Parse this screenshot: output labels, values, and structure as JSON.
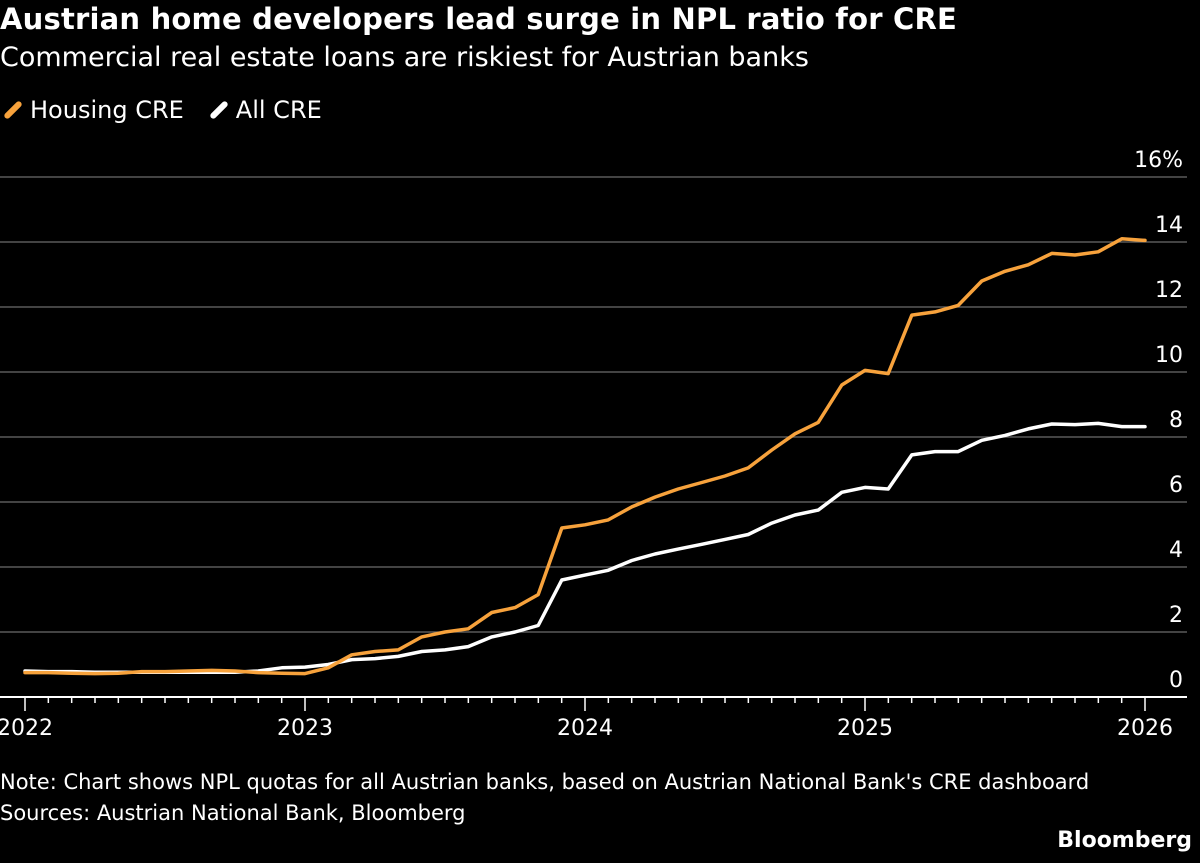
{
  "header": {
    "title": "Austrian home developers lead surge in NPL ratio for CRE",
    "subtitle": "Commercial real estate loans are riskiest for Austrian banks"
  },
  "footer": {
    "note": "Note: Chart shows NPL quotas for all Austrian banks, based on Austrian National Bank's CRE dashboard",
    "sources": "Sources: Austrian National Bank, Bloomberg",
    "brand": "Bloomberg"
  },
  "colors": {
    "background": "#000000",
    "housing": "#f7a23c",
    "all": "#ffffff",
    "grid": "#6b6b6b",
    "axis": "#ffffff"
  },
  "chart_data": {
    "type": "line",
    "title": "Austrian home developers lead surge in NPL ratio for CRE",
    "subtitle": "Commercial real estate loans are riskiest for Austrian banks",
    "xlabel": "",
    "ylabel": "",
    "xlim": [
      2022.0,
      2026.0
    ],
    "ylim": [
      0,
      16
    ],
    "y_ticks": [
      {
        "value": 0,
        "label": "0"
      },
      {
        "value": 2,
        "label": "2"
      },
      {
        "value": 4,
        "label": "4"
      },
      {
        "value": 6,
        "label": "6"
      },
      {
        "value": 8,
        "label": "8"
      },
      {
        "value": 10,
        "label": "10"
      },
      {
        "value": 12,
        "label": "12"
      },
      {
        "value": 14,
        "label": "14"
      },
      {
        "value": 16,
        "label": "16%"
      }
    ],
    "x_ticks": [
      {
        "value": 2022,
        "label": "2022"
      },
      {
        "value": 2023,
        "label": "2023"
      },
      {
        "value": 2024,
        "label": "2024"
      },
      {
        "value": 2025,
        "label": "2025"
      },
      {
        "value": 2026,
        "label": "2026"
      }
    ],
    "grid": true,
    "y_axis_position": "right",
    "legend_position": "top-left",
    "series": [
      {
        "name": "Housing CRE",
        "color": "#f7a23c",
        "points": [
          [
            2022.0,
            0.75
          ],
          [
            2022.083,
            0.75
          ],
          [
            2022.167,
            0.73
          ],
          [
            2022.25,
            0.72
          ],
          [
            2022.333,
            0.73
          ],
          [
            2022.417,
            0.78
          ],
          [
            2022.5,
            0.78
          ],
          [
            2022.583,
            0.8
          ],
          [
            2022.667,
            0.82
          ],
          [
            2022.75,
            0.8
          ],
          [
            2022.833,
            0.75
          ],
          [
            2022.917,
            0.73
          ],
          [
            2023.0,
            0.72
          ],
          [
            2023.083,
            0.9
          ],
          [
            2023.167,
            1.3
          ],
          [
            2023.25,
            1.4
          ],
          [
            2023.333,
            1.45
          ],
          [
            2023.417,
            1.85
          ],
          [
            2023.5,
            2.0
          ],
          [
            2023.583,
            2.1
          ],
          [
            2023.667,
            2.6
          ],
          [
            2023.75,
            2.75
          ],
          [
            2023.833,
            3.15
          ],
          [
            2023.917,
            5.2
          ],
          [
            2024.0,
            5.3
          ],
          [
            2024.083,
            5.45
          ],
          [
            2024.167,
            5.85
          ],
          [
            2024.25,
            6.15
          ],
          [
            2024.333,
            6.4
          ],
          [
            2024.417,
            6.6
          ],
          [
            2024.5,
            6.8
          ],
          [
            2024.583,
            7.05
          ],
          [
            2024.667,
            7.6
          ],
          [
            2024.75,
            8.1
          ],
          [
            2024.833,
            8.45
          ],
          [
            2024.917,
            9.6
          ],
          [
            2025.0,
            10.05
          ],
          [
            2025.083,
            9.95
          ],
          [
            2025.167,
            11.75
          ],
          [
            2025.25,
            11.85
          ],
          [
            2025.333,
            12.05
          ],
          [
            2025.417,
            12.8
          ],
          [
            2025.5,
            13.1
          ],
          [
            2025.583,
            13.3
          ],
          [
            2025.667,
            13.65
          ],
          [
            2025.75,
            13.6
          ],
          [
            2025.833,
            13.7
          ],
          [
            2025.917,
            14.1
          ],
          [
            2026.0,
            14.05
          ]
        ]
      },
      {
        "name": "All CRE",
        "color": "#ffffff",
        "points": [
          [
            2022.0,
            0.8
          ],
          [
            2022.083,
            0.78
          ],
          [
            2022.167,
            0.78
          ],
          [
            2022.25,
            0.76
          ],
          [
            2022.333,
            0.76
          ],
          [
            2022.417,
            0.76
          ],
          [
            2022.5,
            0.76
          ],
          [
            2022.583,
            0.76
          ],
          [
            2022.667,
            0.76
          ],
          [
            2022.75,
            0.76
          ],
          [
            2022.833,
            0.8
          ],
          [
            2022.917,
            0.9
          ],
          [
            2023.0,
            0.92
          ],
          [
            2023.083,
            1.0
          ],
          [
            2023.167,
            1.15
          ],
          [
            2023.25,
            1.18
          ],
          [
            2023.333,
            1.25
          ],
          [
            2023.417,
            1.4
          ],
          [
            2023.5,
            1.45
          ],
          [
            2023.583,
            1.55
          ],
          [
            2023.667,
            1.85
          ],
          [
            2023.75,
            2.0
          ],
          [
            2023.833,
            2.2
          ],
          [
            2023.917,
            3.6
          ],
          [
            2024.0,
            3.75
          ],
          [
            2024.083,
            3.9
          ],
          [
            2024.167,
            4.2
          ],
          [
            2024.25,
            4.4
          ],
          [
            2024.333,
            4.55
          ],
          [
            2024.417,
            4.7
          ],
          [
            2024.5,
            4.85
          ],
          [
            2024.583,
            5.0
          ],
          [
            2024.667,
            5.35
          ],
          [
            2024.75,
            5.6
          ],
          [
            2024.833,
            5.75
          ],
          [
            2024.917,
            6.3
          ],
          [
            2025.0,
            6.45
          ],
          [
            2025.083,
            6.4
          ],
          [
            2025.167,
            7.45
          ],
          [
            2025.25,
            7.55
          ],
          [
            2025.333,
            7.55
          ],
          [
            2025.417,
            7.9
          ],
          [
            2025.5,
            8.05
          ],
          [
            2025.583,
            8.25
          ],
          [
            2025.667,
            8.4
          ],
          [
            2025.75,
            8.38
          ],
          [
            2025.833,
            8.42
          ],
          [
            2025.917,
            8.32
          ],
          [
            2026.0,
            8.32
          ]
        ]
      }
    ]
  }
}
